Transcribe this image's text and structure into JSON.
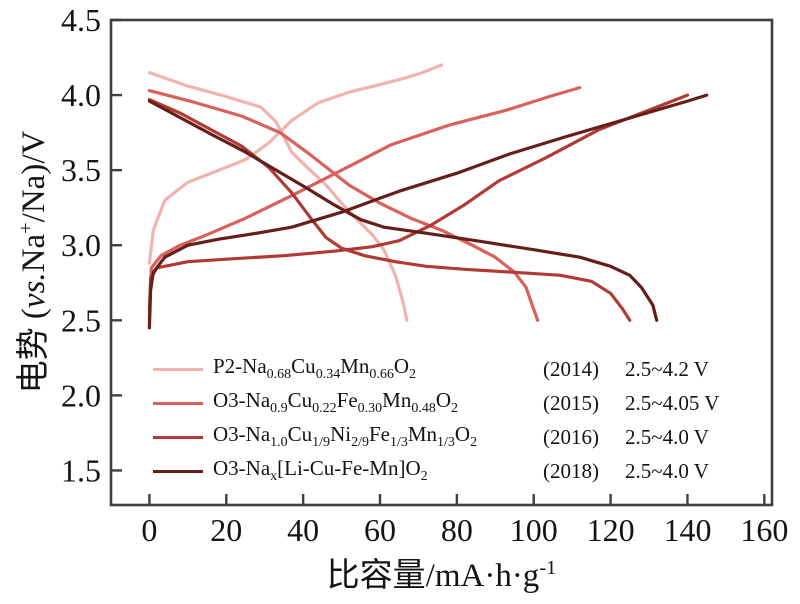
{
  "figure": {
    "background": "#ffffff",
    "frame_color": "#3f3f3f",
    "tick_label_color": "#141414"
  },
  "ylabel": {
    "prefix": "电势 (",
    "italic": "vs.",
    "mid": "Na",
    "sup": "+",
    "suffix": "/Na)/V"
  },
  "xlabel": {
    "main": "比容量/mA·h·g",
    "sup": "-1"
  },
  "legend": {
    "entries": [
      {
        "color": "#f0b3af",
        "formula": [
          {
            "text": "P2-Na"
          },
          {
            "text": "0.68",
            "sub": true
          },
          {
            "text": "Cu"
          },
          {
            "text": "0.34",
            "sub": true
          },
          {
            "text": "Mn"
          },
          {
            "text": "0.66",
            "sub": true
          },
          {
            "text": "O"
          },
          {
            "text": "2",
            "sub": true
          }
        ],
        "year": "(2014)",
        "range": "2.5~4.2 V"
      },
      {
        "color": "#d9615c",
        "formula": [
          {
            "text": "O3-Na"
          },
          {
            "text": "0.9",
            "sub": true
          },
          {
            "text": "Cu"
          },
          {
            "text": "0.22",
            "sub": true
          },
          {
            "text": "Fe"
          },
          {
            "text": "0.30",
            "sub": true
          },
          {
            "text": "Mn"
          },
          {
            "text": "0.48",
            "sub": true
          },
          {
            "text": "O"
          },
          {
            "text": "2",
            "sub": true
          }
        ],
        "year": "(2015)",
        "range": "2.5~4.05 V"
      },
      {
        "color": "#b13a34",
        "formula": [
          {
            "text": "O3-Na"
          },
          {
            "text": "1.0",
            "sub": true
          },
          {
            "text": "Cu"
          },
          {
            "text": "1/9",
            "sub": true
          },
          {
            "text": "Ni"
          },
          {
            "text": "2/9",
            "sub": true
          },
          {
            "text": "Fe"
          },
          {
            "text": "1/3",
            "sub": true
          },
          {
            "text": "Mn"
          },
          {
            "text": "1/3",
            "sub": true
          },
          {
            "text": "O"
          },
          {
            "text": "2",
            "sub": true
          }
        ],
        "year": "(2016)",
        "range": "2.5~4.0 V"
      },
      {
        "color": "#641f1b",
        "formula": [
          {
            "text": "O3-Na"
          },
          {
            "text": "x",
            "sub": true
          },
          {
            "text": "[Li-Cu-Fe-Mn]O"
          },
          {
            "text": "2",
            "sub": true
          }
        ],
        "year": "(2018)",
        "range": "2.5~4.0 V"
      }
    ]
  },
  "chart_data": {
    "type": "line",
    "title": "",
    "xlabel": "比容量/mA·h·g⁻¹",
    "ylabel": "电势 (vs.Na⁺/Na)/V",
    "xlim": [
      -10,
      162
    ],
    "ylim": [
      1.27,
      4.5
    ],
    "xticks": [
      0,
      20,
      40,
      60,
      80,
      100,
      120,
      140,
      160
    ],
    "yticks": [
      1.5,
      2.0,
      2.5,
      3.0,
      3.5,
      4.0,
      4.5
    ],
    "grid": false,
    "legend_position": "inside lower-left",
    "series": [
      {
        "name": "P2-Na0.68Cu0.34Mn0.66O2",
        "year": "2014",
        "voltage_window": "2.5~4.2 V",
        "color": "#f0b3af",
        "charge": [
          [
            0,
            2.88
          ],
          [
            1,
            3.1
          ],
          [
            4,
            3.3
          ],
          [
            10,
            3.42
          ],
          [
            18,
            3.5
          ],
          [
            25,
            3.57
          ],
          [
            31,
            3.68
          ],
          [
            37,
            3.83
          ],
          [
            44,
            3.95
          ],
          [
            52,
            4.02
          ],
          [
            60,
            4.07
          ],
          [
            66,
            4.11
          ],
          [
            71,
            4.15
          ],
          [
            76,
            4.2
          ]
        ],
        "discharge": [
          [
            0,
            4.15
          ],
          [
            10,
            4.06
          ],
          [
            20,
            3.99
          ],
          [
            29,
            3.92
          ],
          [
            33,
            3.82
          ],
          [
            37,
            3.62
          ],
          [
            41,
            3.52
          ],
          [
            46,
            3.4
          ],
          [
            50,
            3.28
          ],
          [
            54,
            3.17
          ],
          [
            58,
            3.07
          ],
          [
            61,
            2.97
          ],
          [
            64,
            2.8
          ],
          [
            66,
            2.62
          ],
          [
            67,
            2.5
          ]
        ]
      },
      {
        "name": "O3-Na0.9Cu0.22Fe0.30Mn0.48O2",
        "year": "2015",
        "voltage_window": "2.5~4.05 V",
        "color": "#d9615c",
        "charge": [
          [
            0,
            2.58
          ],
          [
            0.5,
            2.85
          ],
          [
            3,
            2.93
          ],
          [
            8,
            3.0
          ],
          [
            15,
            3.07
          ],
          [
            25,
            3.18
          ],
          [
            37,
            3.33
          ],
          [
            50,
            3.5
          ],
          [
            63,
            3.67
          ],
          [
            78,
            3.8
          ],
          [
            93,
            3.9
          ],
          [
            104,
            3.99
          ],
          [
            112,
            4.05
          ]
        ],
        "discharge": [
          [
            0,
            4.03
          ],
          [
            12,
            3.95
          ],
          [
            24,
            3.86
          ],
          [
            34,
            3.75
          ],
          [
            42,
            3.6
          ],
          [
            48,
            3.48
          ],
          [
            52,
            3.4
          ],
          [
            60,
            3.28
          ],
          [
            68,
            3.18
          ],
          [
            76,
            3.1
          ],
          [
            84,
            3.0
          ],
          [
            90,
            2.92
          ],
          [
            95,
            2.82
          ],
          [
            98,
            2.72
          ],
          [
            101,
            2.5
          ]
        ]
      },
      {
        "name": "O3-Na1.0Cu1/9Ni2/9Fe1/3Mn1/3O2",
        "year": "2016",
        "voltage_window": "2.5~4.0 V",
        "color": "#b13a34",
        "charge": [
          [
            0,
            2.5
          ],
          [
            0.3,
            2.78
          ],
          [
            2,
            2.85
          ],
          [
            10,
            2.89
          ],
          [
            22,
            2.91
          ],
          [
            35,
            2.93
          ],
          [
            48,
            2.96
          ],
          [
            58,
            2.99
          ],
          [
            65,
            3.03
          ],
          [
            73,
            3.13
          ],
          [
            82,
            3.27
          ],
          [
            91,
            3.43
          ],
          [
            103,
            3.58
          ],
          [
            117,
            3.77
          ],
          [
            128,
            3.88
          ],
          [
            136,
            3.96
          ],
          [
            140,
            4.0
          ]
        ],
        "discharge": [
          [
            0,
            3.97
          ],
          [
            8,
            3.88
          ],
          [
            16,
            3.77
          ],
          [
            24,
            3.66
          ],
          [
            31,
            3.52
          ],
          [
            37,
            3.35
          ],
          [
            42,
            3.18
          ],
          [
            46,
            3.05
          ],
          [
            50,
            2.98
          ],
          [
            56,
            2.93
          ],
          [
            64,
            2.89
          ],
          [
            72,
            2.86
          ],
          [
            82,
            2.84
          ],
          [
            95,
            2.82
          ],
          [
            107,
            2.8
          ],
          [
            115,
            2.76
          ],
          [
            120,
            2.68
          ],
          [
            123,
            2.58
          ],
          [
            125,
            2.5
          ]
        ]
      },
      {
        "name": "O3-Nax[Li-Cu-Fe-Mn]O2",
        "year": "2018",
        "voltage_window": "2.5~4.0 V",
        "color": "#641f1b",
        "charge": [
          [
            0,
            2.45
          ],
          [
            0.3,
            2.7
          ],
          [
            1,
            2.82
          ],
          [
            4,
            2.92
          ],
          [
            10,
            3.0
          ],
          [
            18,
            3.04
          ],
          [
            28,
            3.08
          ],
          [
            37,
            3.12
          ],
          [
            50,
            3.22
          ],
          [
            65,
            3.36
          ],
          [
            80,
            3.48
          ],
          [
            94,
            3.61
          ],
          [
            108,
            3.72
          ],
          [
            120,
            3.81
          ],
          [
            132,
            3.9
          ],
          [
            140,
            3.96
          ],
          [
            145,
            4.0
          ]
        ],
        "discharge": [
          [
            0,
            3.96
          ],
          [
            8,
            3.85
          ],
          [
            16,
            3.74
          ],
          [
            25,
            3.62
          ],
          [
            33,
            3.5
          ],
          [
            41,
            3.38
          ],
          [
            48,
            3.27
          ],
          [
            55,
            3.17
          ],
          [
            61,
            3.12
          ],
          [
            72,
            3.08
          ],
          [
            85,
            3.03
          ],
          [
            100,
            2.97
          ],
          [
            112,
            2.92
          ],
          [
            120,
            2.86
          ],
          [
            125,
            2.8
          ],
          [
            128,
            2.72
          ],
          [
            131,
            2.6
          ],
          [
            132,
            2.5
          ]
        ]
      }
    ]
  }
}
